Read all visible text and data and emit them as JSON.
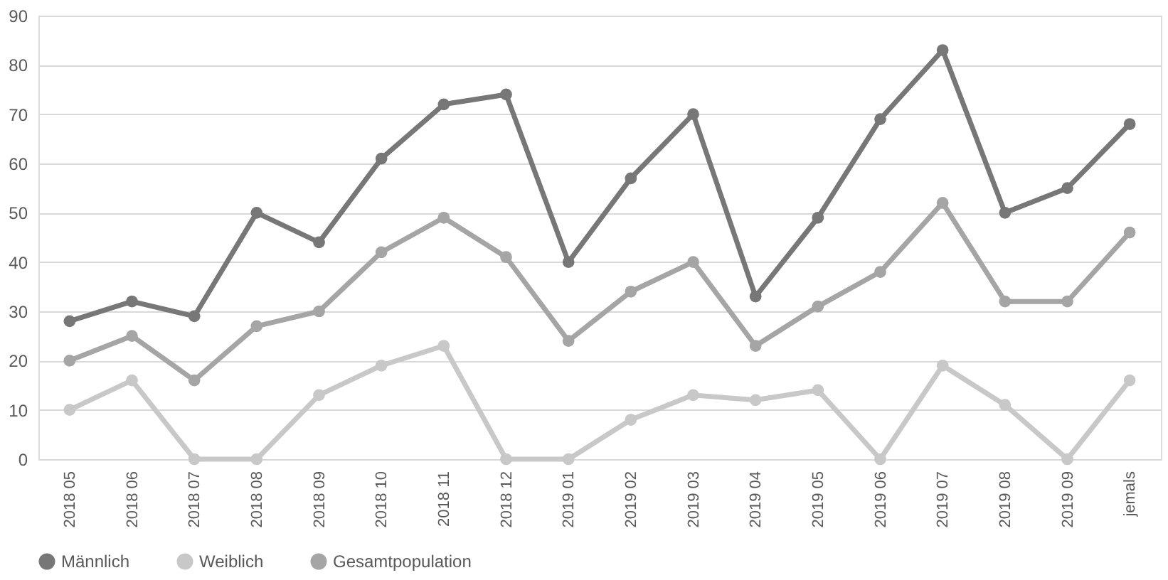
{
  "chart_data": {
    "type": "line",
    "categories": [
      "2018 05",
      "2018 06",
      "2018 07",
      "2018 08",
      "2018 09",
      "2018 10",
      "2018 11",
      "2018 12",
      "2019 01",
      "2019 02",
      "2019 03",
      "2019 04",
      "2019 05",
      "2019 06",
      "2019 07",
      "2019 08",
      "2019 09",
      "jemals"
    ],
    "series": [
      {
        "name": "Männlich",
        "color": "#777777",
        "values": [
          28,
          32,
          29,
          50,
          44,
          61,
          72,
          74,
          40,
          57,
          70,
          33,
          49,
          69,
          83,
          50,
          55,
          68
        ]
      },
      {
        "name": "Weiblich",
        "color": "#c8c8c8",
        "values": [
          10,
          16,
          0,
          0,
          13,
          19,
          23,
          0,
          0,
          8,
          13,
          12,
          14,
          0,
          19,
          11,
          0,
          16
        ]
      },
      {
        "name": "Gesamtpopulation",
        "color": "#a5a5a5",
        "values": [
          20,
          25,
          16,
          27,
          30,
          42,
          49,
          41,
          24,
          34,
          40,
          23,
          31,
          38,
          52,
          32,
          32,
          46
        ]
      }
    ],
    "ylim": [
      0,
      90
    ],
    "yticks": [
      0,
      10,
      20,
      30,
      40,
      50,
      60,
      70,
      80,
      90
    ],
    "grid": "y",
    "legend": "bottom",
    "marker": "circle",
    "line_style": "solid"
  }
}
